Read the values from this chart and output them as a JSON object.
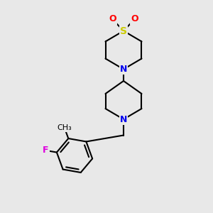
{
  "background_color": "#e8e8e8",
  "bond_color": "#000000",
  "atom_colors": {
    "N": "#0000ee",
    "O": "#ff0000",
    "S": "#cccc00",
    "F": "#dd00dd",
    "C": "#000000",
    "Me": "#000000"
  },
  "figsize": [
    3.0,
    3.0
  ],
  "dpi": 100,
  "font_size": 9,
  "bond_lw": 1.5
}
